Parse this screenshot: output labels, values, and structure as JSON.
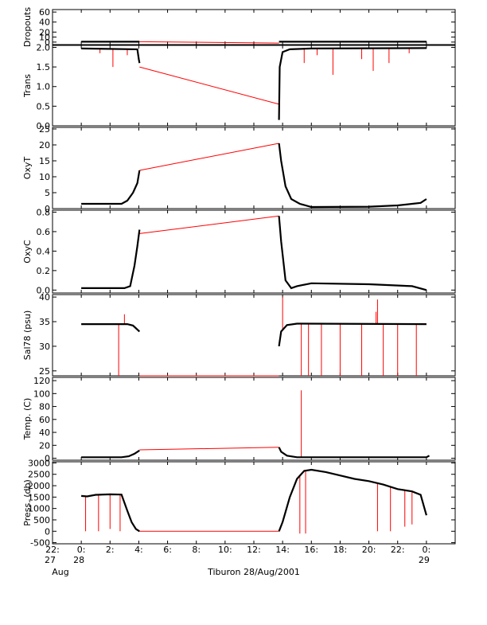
{
  "chart_data": {
    "type": "line",
    "xlabel": "Tiburon 28/Aug/2001",
    "xlim": [
      -2,
      26
    ],
    "x_ticks": [
      {
        "h": -2,
        "l1": "22:",
        "l2": "27",
        "l3": "Aug"
      },
      {
        "h": 0,
        "l1": "0:",
        "l2": "28"
      },
      {
        "h": 2,
        "l1": "2:"
      },
      {
        "h": 4,
        "l1": "4:"
      },
      {
        "h": 6,
        "l1": "6:"
      },
      {
        "h": 8,
        "l1": "8:"
      },
      {
        "h": 10,
        "l1": "10:"
      },
      {
        "h": 12,
        "l1": "12:"
      },
      {
        "h": 14,
        "l1": "14:"
      },
      {
        "h": 16,
        "l1": "16:"
      },
      {
        "h": 18,
        "l1": "18:"
      },
      {
        "h": 20,
        "l1": "20:"
      },
      {
        "h": 22,
        "l1": "22:"
      },
      {
        "h": 24,
        "l1": "0:",
        "l2": "29"
      }
    ],
    "series_color": "#000000",
    "gap_color": "#ff0000",
    "gap": [
      4.05,
      13.75
    ],
    "panels": [
      {
        "ylabel": "Dropouts",
        "ylim": [
          -5,
          65
        ],
        "yticks": [
          0,
          10,
          20,
          40,
          60
        ],
        "segA": [
          [
            0,
            0.8
          ],
          [
            4.05,
            0.8
          ]
        ],
        "gapLine": [
          [
            4.05,
            0.8
          ],
          [
            13.75,
            -2
          ]
        ],
        "segB": [
          [
            13.75,
            0.8
          ],
          [
            24,
            0.8
          ]
        ],
        "spikes": []
      },
      {
        "ylabel": "Trans",
        "ylim": [
          0,
          2.05
        ],
        "yticks": [
          0.0,
          0.5,
          1.0,
          1.5,
          2.0
        ],
        "segA": [
          [
            0,
            1.97
          ],
          [
            3.9,
            1.95
          ],
          [
            4.0,
            1.7
          ],
          [
            4.05,
            1.6
          ]
        ],
        "gapLine": [
          [
            4.05,
            1.5
          ],
          [
            13.75,
            0.55
          ]
        ],
        "segB": [
          [
            13.75,
            0.15
          ],
          [
            13.8,
            1.5
          ],
          [
            14.0,
            1.88
          ],
          [
            14.5,
            1.95
          ],
          [
            16,
            1.97
          ],
          [
            24,
            1.98
          ]
        ],
        "spikes": [
          [
            1.3,
            1.85
          ],
          [
            2.2,
            1.5
          ],
          [
            3.2,
            1.8
          ],
          [
            15.5,
            1.6
          ],
          [
            16.4,
            1.8
          ],
          [
            17.5,
            1.3
          ],
          [
            19.5,
            1.7
          ],
          [
            20.3,
            1.4
          ],
          [
            21.4,
            1.6
          ],
          [
            22.8,
            1.85
          ]
        ]
      },
      {
        "ylabel": "OxyT",
        "ylim": [
          0,
          25.5
        ],
        "yticks": [
          0,
          5,
          10,
          15,
          20,
          25
        ],
        "segA": [
          [
            0,
            1.5
          ],
          [
            2.8,
            1.5
          ],
          [
            3.2,
            2.5
          ],
          [
            3.6,
            5
          ],
          [
            3.9,
            8
          ],
          [
            4.05,
            12
          ]
        ],
        "gapLine": [
          [
            4.05,
            12
          ],
          [
            13.75,
            20.5
          ]
        ],
        "segB": [
          [
            13.75,
            20.5
          ],
          [
            13.9,
            15
          ],
          [
            14.2,
            7
          ],
          [
            14.6,
            3
          ],
          [
            15.2,
            1.5
          ],
          [
            16,
            0.5
          ],
          [
            20,
            0.6
          ],
          [
            22,
            1
          ],
          [
            23.6,
            1.8
          ],
          [
            24,
            3
          ]
        ],
        "spikes": []
      },
      {
        "ylabel": "OxyC",
        "ylim": [
          -0.03,
          0.82
        ],
        "yticks": [
          0.0,
          0.2,
          0.4,
          0.6,
          0.8
        ],
        "segA": [
          [
            0,
            0.02
          ],
          [
            3.0,
            0.02
          ],
          [
            3.4,
            0.04
          ],
          [
            3.7,
            0.25
          ],
          [
            3.9,
            0.45
          ],
          [
            4.05,
            0.62
          ]
        ],
        "gapLine": [
          [
            4.05,
            0.58
          ],
          [
            13.75,
            0.76
          ]
        ],
        "segB": [
          [
            13.75,
            0.76
          ],
          [
            13.9,
            0.5
          ],
          [
            14.2,
            0.1
          ],
          [
            14.6,
            0.02
          ],
          [
            15.0,
            0.04
          ],
          [
            16,
            0.07
          ],
          [
            20,
            0.06
          ],
          [
            23,
            0.04
          ],
          [
            24,
            0.0
          ]
        ],
        "spikes": []
      },
      {
        "ylabel": "Sal78 (psu)",
        "ylim": [
          24,
          40.5
        ],
        "yticks": [
          25,
          30,
          35,
          40
        ],
        "segA": [
          [
            0,
            34.5
          ],
          [
            3.2,
            34.5
          ],
          [
            3.6,
            34.2
          ],
          [
            4.05,
            33
          ]
        ],
        "gapLine": [
          [
            4.05,
            24
          ],
          [
            13.75,
            24
          ]
        ],
        "segB": [
          [
            13.75,
            30
          ],
          [
            13.9,
            33
          ],
          [
            14.3,
            34.3
          ],
          [
            15,
            34.6
          ],
          [
            24,
            34.5
          ]
        ],
        "spikes": [
          [
            2.6,
            24
          ],
          [
            3.0,
            36.5
          ],
          [
            14.0,
            40
          ],
          [
            15.3,
            24
          ],
          [
            15.8,
            24
          ],
          [
            16.7,
            24
          ],
          [
            18.0,
            24
          ],
          [
            19.5,
            24
          ],
          [
            21.0,
            24
          ],
          [
            22.0,
            24
          ],
          [
            23.3,
            24
          ],
          [
            20.6,
            39.5
          ],
          [
            20.5,
            37
          ]
        ]
      },
      {
        "ylabel": "Temp. (C)",
        "ylim": [
          -3,
          125
        ],
        "yticks": [
          0,
          20,
          40,
          60,
          80,
          100,
          120
        ],
        "segA": [
          [
            0,
            1.5
          ],
          [
            2.8,
            1.5
          ],
          [
            3.3,
            3
          ],
          [
            3.7,
            7
          ],
          [
            4.05,
            12
          ]
        ],
        "gapLine": [
          [
            4.05,
            13
          ],
          [
            13.75,
            17
          ]
        ],
        "segB": [
          [
            13.75,
            17
          ],
          [
            13.9,
            10
          ],
          [
            14.3,
            4
          ],
          [
            15,
            1.5
          ],
          [
            24,
            1.5
          ],
          [
            24.2,
            4
          ]
        ],
        "spikes": [
          [
            15.3,
            105
          ]
        ]
      },
      {
        "ylabel": "Press. (db)",
        "ylim": [
          -550,
          3050
        ],
        "yticks": [
          -500,
          0,
          500,
          1000,
          1500,
          2000,
          2500,
          3000
        ],
        "segA": [
          [
            0,
            1550
          ],
          [
            0.4,
            1530
          ],
          [
            1.0,
            1600
          ],
          [
            2.0,
            1620
          ],
          [
            2.8,
            1610
          ],
          [
            3.2,
            900
          ],
          [
            3.5,
            400
          ],
          [
            3.8,
            100
          ],
          [
            4.05,
            0
          ]
        ],
        "gapLine": [
          [
            4.05,
            0
          ],
          [
            13.75,
            0
          ]
        ],
        "segB": [
          [
            13.75,
            0
          ],
          [
            14.0,
            400
          ],
          [
            14.5,
            1500
          ],
          [
            15.0,
            2300
          ],
          [
            15.5,
            2650
          ],
          [
            16.0,
            2700
          ],
          [
            17.0,
            2600
          ],
          [
            18.0,
            2450
          ],
          [
            19.0,
            2300
          ],
          [
            20.0,
            2200
          ],
          [
            21.0,
            2050
          ],
          [
            22.0,
            1850
          ],
          [
            23.0,
            1750
          ],
          [
            23.6,
            1600
          ],
          [
            24.0,
            700
          ]
        ],
        "spikes": [
          [
            0.3,
            0
          ],
          [
            1.2,
            0
          ],
          [
            2.0,
            100
          ],
          [
            2.7,
            0
          ],
          [
            15.2,
            -100
          ],
          [
            15.6,
            -100
          ],
          [
            20.6,
            0
          ],
          [
            21.5,
            0
          ],
          [
            22.5,
            200
          ],
          [
            23.0,
            300
          ]
        ]
      }
    ]
  }
}
